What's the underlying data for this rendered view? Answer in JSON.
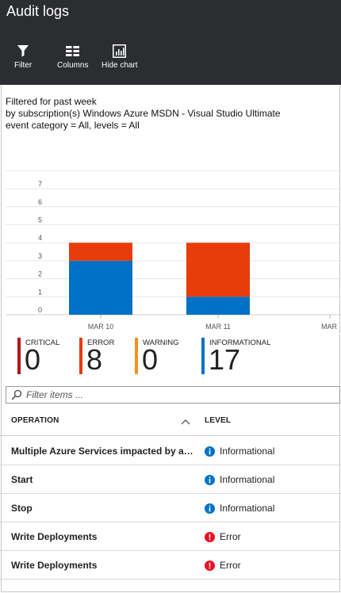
{
  "header": {
    "title": "Audit logs",
    "toolbar": [
      {
        "label": "Filter",
        "icon": "filter-icon"
      },
      {
        "label": "Columns",
        "icon": "columns-icon"
      },
      {
        "label": "Hide chart",
        "icon": "chart-icon"
      }
    ]
  },
  "filter_info": {
    "line1": "Filtered for past week",
    "line2": "by subscription(s) Windows Azure MSDN - Visual Studio Ultimate",
    "line3": "event category = All, levels = All"
  },
  "chart_data": {
    "type": "bar",
    "stacked": true,
    "categories": [
      "MAR 10",
      "MAR 11",
      "MAR"
    ],
    "series": [
      {
        "name": "INFORMATIONAL",
        "color": "#0072c6",
        "values": [
          3,
          1,
          0
        ]
      },
      {
        "name": "ERROR",
        "color": "#e83c0c",
        "values": [
          1,
          3,
          0
        ]
      }
    ],
    "y_ticks": [
      "0",
      "1",
      "2",
      "3",
      "4",
      "5",
      "6",
      "7"
    ],
    "ylim": [
      0,
      8
    ],
    "grid": true
  },
  "summary": [
    {
      "label": "CRITICAL",
      "value": "0",
      "color": "#b4161b"
    },
    {
      "label": "ERROR",
      "value": "8",
      "color": "#e83c0c"
    },
    {
      "label": "WARNING",
      "value": "0",
      "color": "#f3921e"
    },
    {
      "label": "INFORMATIONAL",
      "value": "17",
      "color": "#0072c6"
    }
  ],
  "search": {
    "placeholder": "Filter items ..."
  },
  "table": {
    "columns": [
      "OPERATION",
      "LEVEL"
    ],
    "rows": [
      {
        "operation": "Multiple Azure Services impacted by an u...",
        "level": "Informational",
        "level_icon": "info-icon"
      },
      {
        "operation": "Start",
        "level": "Informational",
        "level_icon": "info-icon"
      },
      {
        "operation": "Stop",
        "level": "Informational",
        "level_icon": "info-icon"
      },
      {
        "operation": "Write Deployments",
        "level": "Error",
        "level_icon": "error-icon"
      },
      {
        "operation": "Write Deployments",
        "level": "Error",
        "level_icon": "error-icon"
      }
    ]
  },
  "colors": {
    "header_bg": "#2b2d31",
    "info": "#0072c6",
    "error": "#e81123"
  }
}
